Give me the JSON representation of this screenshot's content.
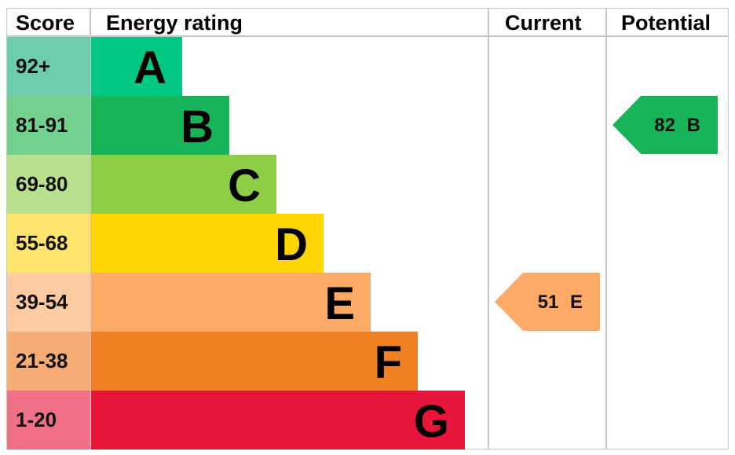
{
  "header": {
    "score": "Score",
    "energy_rating": "Energy rating",
    "current": "Current",
    "potential": "Potential"
  },
  "chart_data": {
    "type": "table",
    "bands": [
      {
        "letter": "A",
        "range": "92+",
        "color": "#00c781",
        "score_color": "#6dcca9"
      },
      {
        "letter": "B",
        "range": "81-91",
        "color": "#19b459",
        "score_color": "#74d08f"
      },
      {
        "letter": "C",
        "range": "69-80",
        "color": "#8dce46",
        "score_color": "#b9e08f"
      },
      {
        "letter": "D",
        "range": "55-68",
        "color": "#ffd500",
        "score_color": "#ffe56e"
      },
      {
        "letter": "E",
        "range": "39-54",
        "color": "#fcaa65",
        "score_color": "#fdcba2"
      },
      {
        "letter": "F",
        "range": "21-38",
        "color": "#ef8023",
        "score_color": "#f5ad75"
      },
      {
        "letter": "G",
        "range": "1-20",
        "color": "#e9153b",
        "score_color": "#f07087"
      }
    ],
    "current": {
      "value": 51,
      "band": "E",
      "label": "51 E",
      "color": "#fcaa65"
    },
    "potential": {
      "value": 82,
      "band": "B",
      "label": "82 B",
      "color": "#19b459"
    }
  }
}
